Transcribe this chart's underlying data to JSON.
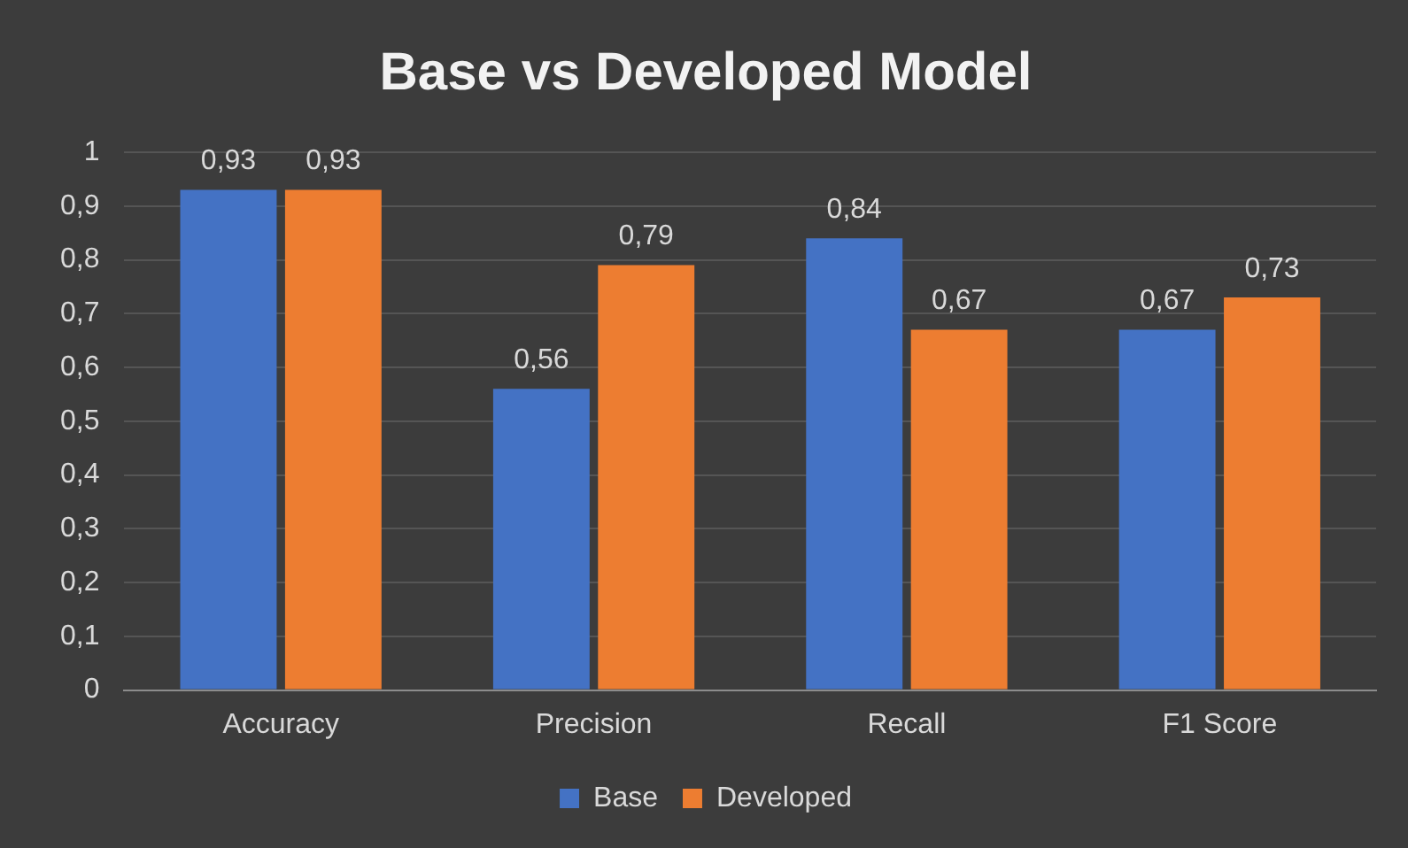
{
  "chart_data": {
    "type": "bar",
    "title": "Base vs Developed Model",
    "categories": [
      "Accuracy",
      "Precision",
      "Recall",
      "F1 Score"
    ],
    "series": [
      {
        "name": "Base",
        "color": "#4472c4",
        "values": [
          0.93,
          0.56,
          0.84,
          0.67
        ],
        "value_labels": [
          "0,93",
          "0,56",
          "0,84",
          "0,67"
        ]
      },
      {
        "name": "Developed",
        "color": "#ed7d31",
        "values": [
          0.93,
          0.79,
          0.67,
          0.73
        ],
        "value_labels": [
          "0,93",
          "0,79",
          "0,67",
          "0,73"
        ]
      }
    ],
    "ylim": [
      0,
      1
    ],
    "yticks": [
      0,
      {
        "value": 0.1,
        "label": "0,1"
      },
      {
        "value": 0.2,
        "label": "0,2"
      },
      {
        "value": 0.3,
        "label": "0,3"
      },
      {
        "value": 0.4,
        "label": "0,4"
      },
      {
        "value": 0.5,
        "label": "0,5"
      },
      {
        "value": 0.6,
        "label": "0,6"
      },
      {
        "value": 0.7,
        "label": "0,7"
      },
      {
        "value": 0.8,
        "label": "0,8"
      },
      {
        "value": 0.9,
        "label": "0,9"
      },
      1
    ],
    "grid": "y",
    "legend": "bottom"
  }
}
